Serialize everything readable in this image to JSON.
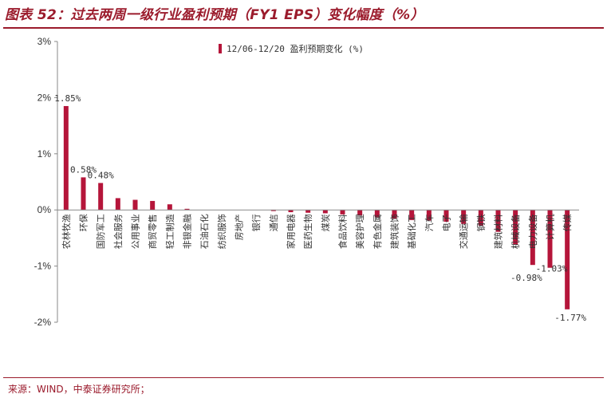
{
  "figure": {
    "title": "图表 52：过去两周一级行业盈利预期（FY1 EPS）变化幅度（%）",
    "source": "来源：WIND，中泰证券研究所；"
  },
  "chart_data": {
    "type": "bar",
    "title": "图表 52：过去两周一级行业盈利预期（FY1 EPS）变化幅度（%）",
    "xlabel": "",
    "ylabel": "",
    "ylim": [
      -2,
      3
    ],
    "yticks": [
      3,
      2,
      1,
      0,
      -1,
      -2
    ],
    "ytick_labels": [
      "3%",
      "2%",
      "1%",
      "0%",
      "-1%",
      "-2%"
    ],
    "grid": false,
    "legend_position": "top-center",
    "color": "#b5153a",
    "categories": [
      "农林牧渔",
      "环保",
      "国防军工",
      "社会服务",
      "公用事业",
      "商贸零售",
      "轻工制造",
      "非银金融",
      "石油石化",
      "纺织服饰",
      "房地产",
      "银行",
      "通信",
      "家用电器",
      "医药生物",
      "煤炭",
      "食品饮料",
      "美容护理",
      "有色金属",
      "建筑装饰",
      "基础化工",
      "汽车",
      "电子",
      "交通运输",
      "钢铁",
      "建筑材料",
      "机械设备",
      "电力设备",
      "计算机",
      "传媒"
    ],
    "series": [
      {
        "name": "12/06-12/20 盈利预期变化 (%)",
        "values": [
          1.85,
          0.58,
          0.48,
          0.21,
          0.18,
          0.16,
          0.1,
          0.02,
          0.0,
          0.0,
          0.0,
          0.0,
          -0.02,
          -0.04,
          -0.05,
          -0.06,
          -0.08,
          -0.1,
          -0.13,
          -0.16,
          -0.18,
          -0.19,
          -0.21,
          -0.25,
          -0.28,
          -0.39,
          -0.62,
          -0.98,
          -1.03,
          -1.77
        ]
      }
    ],
    "data_labels": [
      {
        "index": 0,
        "text": "1.85%"
      },
      {
        "index": 1,
        "text": "0.58%"
      },
      {
        "index": 2,
        "text": "0.48%"
      },
      {
        "index": 27,
        "text": "-0.98%"
      },
      {
        "index": 28,
        "text": "-1.03%"
      },
      {
        "index": 29,
        "text": "-1.77%"
      }
    ]
  }
}
